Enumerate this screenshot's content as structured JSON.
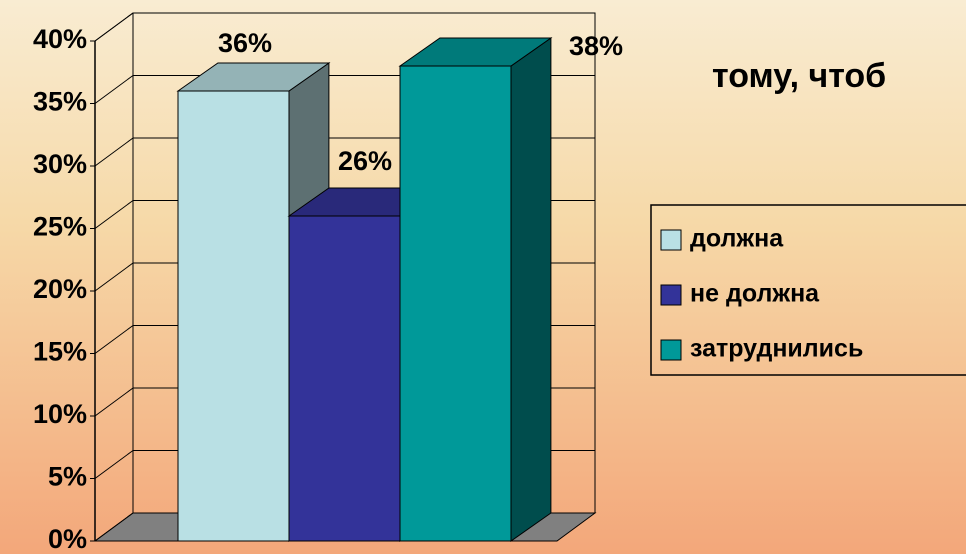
{
  "chart_data": {
    "type": "bar3d",
    "title": "тому, чтоб",
    "categories": [
      null
    ],
    "series": [
      {
        "name": "должна",
        "color": "#b9e0e4",
        "values": [
          36
        ],
        "value_labels": [
          "36%"
        ]
      },
      {
        "name": "не должна",
        "color": "#333399",
        "values": [
          26
        ],
        "value_labels": [
          "26%"
        ]
      },
      {
        "name": "затруднились",
        "color": "#009999",
        "values": [
          38
        ],
        "value_labels": [
          "38%"
        ]
      }
    ],
    "ylim": [
      0,
      40
    ],
    "yticks": [
      {
        "value": 0,
        "label": "0%"
      },
      {
        "value": 5,
        "label": "5%"
      },
      {
        "value": 10,
        "label": "10%"
      },
      {
        "value": 15,
        "label": "15%"
      },
      {
        "value": 20,
        "label": "20%"
      },
      {
        "value": 25,
        "label": "25%"
      },
      {
        "value": 30,
        "label": "30%"
      },
      {
        "value": 35,
        "label": "35%"
      },
      {
        "value": 40,
        "label": "40%"
      }
    ],
    "grid": true,
    "legend": "right"
  }
}
